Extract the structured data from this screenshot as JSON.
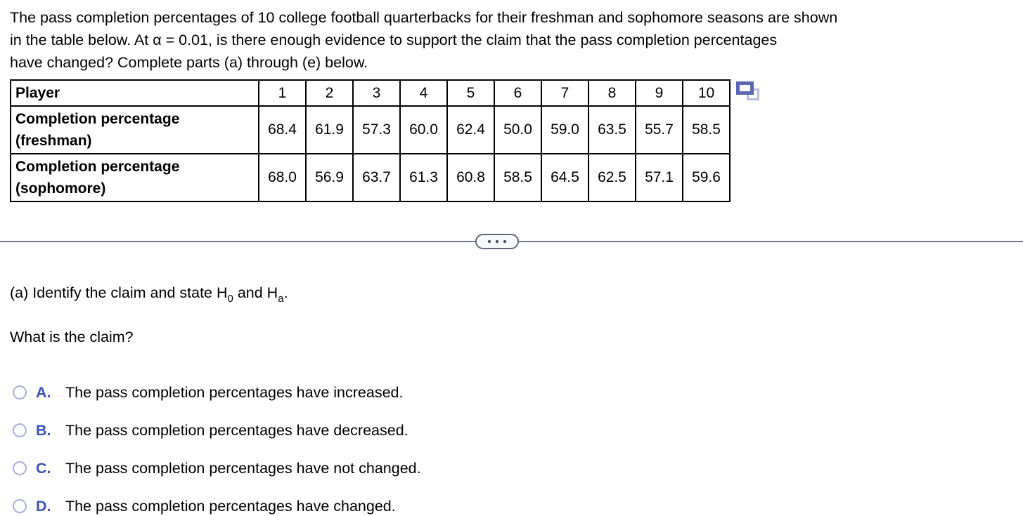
{
  "intro": {
    "lines": [
      "The pass completion percentages of 10 college football quarterbacks for their freshman and sophomore seasons are shown",
      "in the table below. At α = 0.01, is there enough evidence to support the claim that the pass completion percentages",
      "have changed? Complete parts (a) through (e) below."
    ]
  },
  "table": {
    "corner_label": "Player",
    "player_numbers": [
      "1",
      "2",
      "3",
      "4",
      "5",
      "6",
      "7",
      "8",
      "9",
      "10"
    ],
    "rows": [
      {
        "label_line1": "Completion percentage",
        "label_line2": "(freshman)",
        "values": [
          "68.4",
          "61.9",
          "57.3",
          "60.0",
          "62.4",
          "50.0",
          "59.0",
          "63.5",
          "55.7",
          "58.5"
        ]
      },
      {
        "label_line1": "Completion percentage",
        "label_line2": "(sophomore)",
        "values": [
          "68.0",
          "56.9",
          "63.7",
          "61.3",
          "60.8",
          "58.5",
          "64.5",
          "62.5",
          "57.1",
          "59.6"
        ]
      }
    ]
  },
  "icons": {
    "copy_table": "copy-table-icon",
    "more_options": "ellipsis-icon"
  },
  "part_a": {
    "prompt_before": "(a) Identify the claim and state H",
    "h0_subscript": "0",
    "prompt_middle": " and H",
    "ha_subscript": "a",
    "prompt_after": ".",
    "question": "What is the claim?",
    "options": [
      {
        "letter": "A.",
        "text": "The pass completion percentages have increased."
      },
      {
        "letter": "B.",
        "text": "The pass completion percentages have decreased."
      },
      {
        "letter": "C.",
        "text": "The pass completion percentages have not changed."
      },
      {
        "letter": "D.",
        "text": "The pass completion percentages have changed."
      }
    ]
  },
  "colors": {
    "option_letter_blue": "#3a53b4",
    "radio_border": "#a9b0dc",
    "divider_gray": "#6e7683",
    "copy_icon_front": "#5b67b0",
    "copy_icon_back": "#b4bcdf"
  }
}
